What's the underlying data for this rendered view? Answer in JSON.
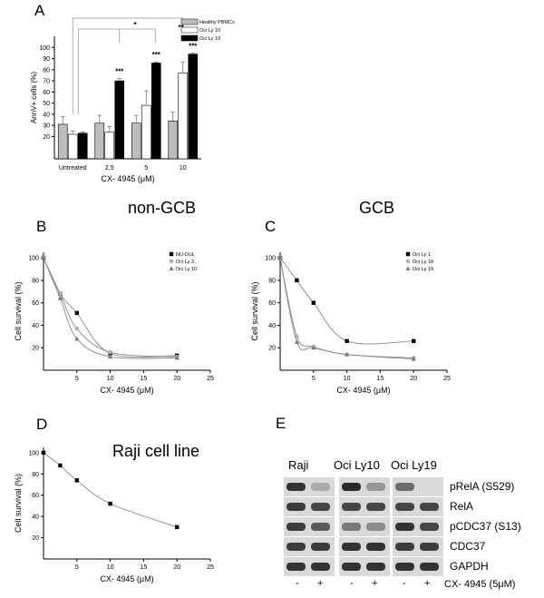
{
  "panels": {
    "A": {
      "letter": "A"
    },
    "B": {
      "letter": "B",
      "group_title": "non-GCB"
    },
    "C": {
      "letter": "C",
      "group_title": "GCB"
    },
    "D": {
      "letter": "D",
      "inner_title": "Raji cell line"
    },
    "E": {
      "letter": "E"
    }
  },
  "chart_data": [
    {
      "id": "A",
      "type": "bar",
      "ylabel": "AnnV+ cells (%)",
      "xlabel": "CX- 4945 (μM)",
      "ylim": [
        0,
        110
      ],
      "yticks": [
        "20",
        "30",
        "40",
        "50",
        "60",
        "70",
        "80",
        "90",
        "100"
      ],
      "categories": [
        "Untreated",
        "2,5",
        "5",
        "10"
      ],
      "series": [
        {
          "name": "Healthy PBMCs",
          "color": "#bdbdbd",
          "values": [
            31,
            32,
            32,
            34
          ],
          "err": [
            7,
            7,
            7,
            8
          ]
        },
        {
          "name": "Oci Ly 10",
          "color": "#ffffff",
          "values": [
            22,
            24,
            48,
            77
          ],
          "err": [
            3,
            5,
            13,
            10
          ]
        },
        {
          "name": "Oci Ly 19",
          "color": "#000000",
          "values": [
            23,
            70,
            86,
            94
          ],
          "err": [
            1,
            2,
            1,
            1
          ]
        }
      ],
      "significance": {
        "per_category": [
          "",
          "***",
          "***",
          "***"
        ],
        "brackets": [
          "*",
          "**"
        ]
      },
      "legend": "top-right"
    },
    {
      "id": "B",
      "type": "line",
      "ylabel": "Cell survival (%)",
      "xlabel": "CX- 4945 (μM)",
      "xlim": [
        0,
        25
      ],
      "ylim": [
        0,
        105
      ],
      "xticks": [
        "5",
        "10",
        "15",
        "20",
        "25"
      ],
      "yticks": [
        "20",
        "40",
        "60",
        "80",
        "100"
      ],
      "series": [
        {
          "name": "NU-DUL",
          "marker": "square",
          "color": "#000000",
          "x": [
            0,
            2.5,
            5,
            10,
            20
          ],
          "y": [
            100,
            68,
            51,
            15,
            13
          ]
        },
        {
          "name": "Oci Ly 3",
          "marker": "circle",
          "color": "#b0b0b0",
          "x": [
            0,
            2.5,
            5,
            10,
            20
          ],
          "y": [
            100,
            68,
            37,
            16,
            12
          ]
        },
        {
          "name": "Oci Ly 10",
          "marker": "triangle",
          "color": "#7a7a7a",
          "x": [
            0,
            2.5,
            5,
            10,
            20
          ],
          "y": [
            100,
            64,
            28,
            12,
            11
          ]
        }
      ],
      "legend": "top-right"
    },
    {
      "id": "C",
      "type": "line",
      "ylabel": "Cell survival (%)",
      "xlabel": "CX- 4945 (μM)",
      "xlim": [
        0,
        25
      ],
      "ylim": [
        0,
        105
      ],
      "xticks": [
        "5",
        "10",
        "15",
        "20",
        "25"
      ],
      "yticks": [
        "20",
        "40",
        "60",
        "80",
        "100"
      ],
      "series": [
        {
          "name": "Oci Ly 1",
          "marker": "square",
          "color": "#000000",
          "x": [
            0,
            2.5,
            5,
            10,
            20
          ],
          "y": [
            100,
            80,
            60,
            26,
            26
          ]
        },
        {
          "name": "Oci Ly 18",
          "marker": "circle",
          "color": "#b0b0b0",
          "x": [
            0,
            2.5,
            5,
            10,
            20
          ],
          "y": [
            100,
            30,
            21,
            14,
            11
          ]
        },
        {
          "name": "Oci Ly 19",
          "marker": "triangle",
          "color": "#7a7a7a",
          "x": [
            0,
            2.5,
            5,
            10,
            20
          ],
          "y": [
            100,
            25,
            20,
            14,
            10
          ]
        }
      ],
      "legend": "top-right"
    },
    {
      "id": "D",
      "type": "line",
      "ylabel": "Cell survival (%)",
      "xlabel": "CX- 4945 (μM)",
      "xlim": [
        0,
        25
      ],
      "ylim": [
        0,
        105
      ],
      "xticks": [
        "5",
        "10",
        "15",
        "20",
        "25"
      ],
      "yticks": [
        "20",
        "40",
        "60",
        "80",
        "100"
      ],
      "series": [
        {
          "marker": "square",
          "color": "#000000",
          "x": [
            0,
            2.5,
            5,
            10,
            20
          ],
          "y": [
            100,
            88,
            74,
            52,
            30
          ]
        }
      ]
    }
  ],
  "blot": {
    "lane_groups": [
      "Raji",
      "Oci Ly10",
      "Oci Ly19"
    ],
    "proteins": [
      "pRelA (S529)",
      "RelA",
      "pCDC37 (S13)",
      "CDC37",
      "GAPDH"
    ],
    "treatment_signs": [
      "-",
      "+",
      "-",
      "+",
      "-",
      "+"
    ],
    "treatment_label": "CX- 4945 (5μM)",
    "band_intensity": [
      [
        0.85,
        0.25,
        0.9,
        0.35,
        0.55,
        0.0
      ],
      [
        0.8,
        0.75,
        0.75,
        0.75,
        0.75,
        0.75
      ],
      [
        0.8,
        0.65,
        0.5,
        0.4,
        0.85,
        0.75
      ],
      [
        0.8,
        0.8,
        0.85,
        0.85,
        0.8,
        0.8
      ],
      [
        0.85,
        0.85,
        0.85,
        0.85,
        0.85,
        0.85
      ]
    ]
  }
}
